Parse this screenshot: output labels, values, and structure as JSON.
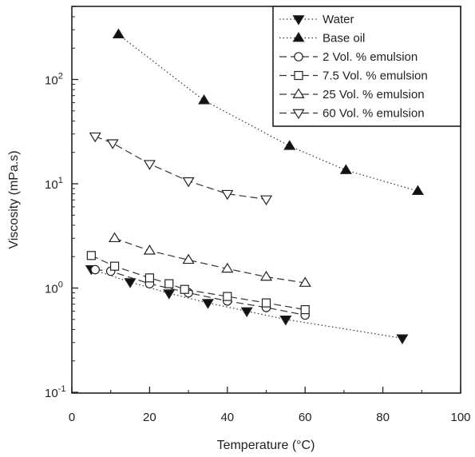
{
  "chart_data": {
    "type": "scatter",
    "xlabel": "Temperature (°C)",
    "ylabel": "Viscosity (mPa.s)",
    "xlim": [
      0,
      100
    ],
    "ylim": [
      0.1,
      500
    ],
    "yscale": "log",
    "grid": false,
    "legend_position": "top-right",
    "x_ticks": [
      0,
      20,
      40,
      60,
      80,
      100
    ],
    "x_tick_labels": [
      "0",
      "20",
      "40",
      "60",
      "80",
      "100"
    ],
    "y_ticks": [
      0.1,
      1,
      10,
      100
    ],
    "y_tick_labels": [
      {
        "base": "10",
        "exp": "-1"
      },
      {
        "base": "10",
        "exp": "0"
      },
      {
        "base": "10",
        "exp": "1"
      },
      {
        "base": "10",
        "exp": "2"
      }
    ],
    "series": [
      {
        "name": "Water",
        "marker": "triangle-down-filled",
        "line": "dotted",
        "x": [
          5,
          15,
          25,
          35,
          45,
          55,
          85
        ],
        "y": [
          1.52,
          1.14,
          0.89,
          0.72,
          0.6,
          0.5,
          0.33
        ]
      },
      {
        "name": "Base oil",
        "marker": "triangle-up-filled",
        "line": "dotted",
        "x": [
          12,
          34,
          56,
          70.5,
          89
        ],
        "y": [
          270,
          63,
          23,
          13.5,
          8.5
        ]
      },
      {
        "name": "2 Vol. % emulsion",
        "marker": "circle-open",
        "line": "dashed",
        "x": [
          6,
          10,
          20,
          30,
          40,
          50,
          60
        ],
        "y": [
          1.5,
          1.45,
          1.1,
          0.9,
          0.75,
          0.65,
          0.55
        ]
      },
      {
        "name": "7.5 Vol. % emulsion",
        "marker": "square-open",
        "line": "dashed",
        "x": [
          5,
          11,
          20,
          25,
          29,
          40,
          50,
          60
        ],
        "y": [
          2.05,
          1.62,
          1.25,
          1.1,
          0.97,
          0.83,
          0.72,
          0.62
        ]
      },
      {
        "name": "25 Vol. % emulsion",
        "marker": "triangle-up-open",
        "line": "dashed",
        "x": [
          11,
          20,
          30,
          40,
          50,
          60
        ],
        "y": [
          3.0,
          2.28,
          1.86,
          1.53,
          1.28,
          1.12
        ]
      },
      {
        "name": "60 Vol. % emulsion",
        "marker": "triangle-down-open",
        "line": "dashed",
        "x": [
          6,
          10.5,
          20,
          30,
          40,
          50
        ],
        "y": [
          28.5,
          24.5,
          15.5,
          10.6,
          8.0,
          7.1
        ]
      }
    ]
  }
}
